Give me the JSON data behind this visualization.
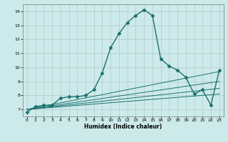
{
  "xlabel": "Humidex (Indice chaleur)",
  "background_color": "#cdeaea",
  "grid_color": "#b0c8c8",
  "line_color": "#1a7070",
  "xlim": [
    -0.5,
    23.5
  ],
  "ylim": [
    6.5,
    14.5
  ],
  "xticks": [
    0,
    1,
    2,
    3,
    4,
    5,
    6,
    7,
    8,
    9,
    10,
    11,
    12,
    13,
    14,
    15,
    16,
    17,
    18,
    19,
    20,
    21,
    22,
    23
  ],
  "yticks": [
    7,
    8,
    9,
    10,
    11,
    12,
    13,
    14
  ],
  "series": [
    {
      "x": [
        0,
        1,
        2,
        3,
        4,
        5,
        6,
        7,
        8,
        9,
        10,
        11,
        12,
        13,
        14,
        15,
        16,
        17,
        18,
        19,
        20,
        21,
        22,
        23
      ],
      "y": [
        6.8,
        7.2,
        7.3,
        7.3,
        7.8,
        7.9,
        7.9,
        8.0,
        8.4,
        9.6,
        11.4,
        12.4,
        13.2,
        13.7,
        14.1,
        13.7,
        10.6,
        10.1,
        9.8,
        9.3,
        8.1,
        8.4,
        7.3,
        9.8
      ],
      "marker": "D",
      "markersize": 2.5,
      "linewidth": 1.0
    },
    {
      "x": [
        0,
        23
      ],
      "y": [
        7.0,
        8.1
      ],
      "marker": null,
      "markersize": 0,
      "linewidth": 0.7
    },
    {
      "x": [
        0,
        23
      ],
      "y": [
        7.0,
        8.5
      ],
      "marker": null,
      "markersize": 0,
      "linewidth": 0.7
    },
    {
      "x": [
        0,
        23
      ],
      "y": [
        7.0,
        9.0
      ],
      "marker": null,
      "markersize": 0,
      "linewidth": 0.7
    },
    {
      "x": [
        0,
        23
      ],
      "y": [
        7.0,
        9.7
      ],
      "marker": null,
      "markersize": 0,
      "linewidth": 0.7
    }
  ]
}
